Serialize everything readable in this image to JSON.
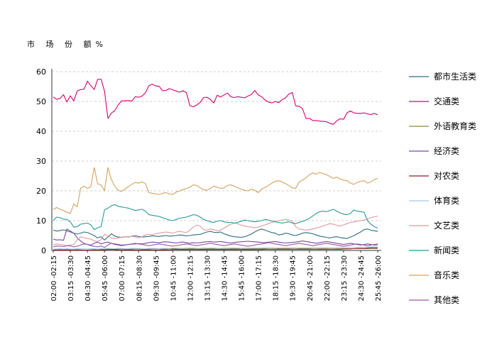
{
  "chart_data": {
    "type": "line",
    "ylabel": "市 场 份 额%",
    "ylim": [
      0,
      60
    ],
    "yticks": [
      0,
      10,
      20,
      30,
      40,
      50,
      60
    ],
    "grid": true,
    "legend_position": "right",
    "x": [
      "02:00",
      "02:15",
      "02:30",
      "02:45",
      "03:00",
      "03:15",
      "03:30",
      "03:45",
      "04:00",
      "04:15",
      "04:30",
      "04:45",
      "05:00",
      "05:15",
      "05:30",
      "05:45",
      "06:00",
      "06:15",
      "06:30",
      "06:45",
      "07:00",
      "07:15",
      "07:30",
      "07:45",
      "08:00",
      "08:15",
      "08:30",
      "08:45",
      "09:00",
      "09:15",
      "09:30",
      "09:45",
      "10:00",
      "10:15",
      "10:30",
      "10:45",
      "11:00",
      "11:15",
      "11:30",
      "11:45",
      "12:00",
      "12:15",
      "12:30",
      "12:45",
      "13:00",
      "13:15",
      "13:30",
      "13:45",
      "14:00",
      "14:15",
      "14:30",
      "14:45",
      "15:00",
      "15:15",
      "15:30",
      "15:45",
      "16:00",
      "16:15",
      "16:30",
      "16:45",
      "17:00",
      "17:15",
      "17:30",
      "17:45",
      "18:00",
      "18:15",
      "18:30",
      "18:45",
      "19:00",
      "19:15",
      "19:30",
      "19:45",
      "20:00",
      "20:15",
      "20:30",
      "20:45",
      "21:00",
      "21:15",
      "21:30",
      "21:45",
      "22:00",
      "22:15",
      "22:30",
      "22:45",
      "23:00",
      "23:15",
      "23:30",
      "23:45",
      "24:00",
      "24:15",
      "24:30",
      "24:45",
      "25:00",
      "25:15",
      "25:30",
      "25:45"
    ],
    "xtick_labels": [
      "02:00 -02:15",
      "03:15 -03:30",
      "04:30 -04:45",
      "05:45 -06:00",
      "07:00 -07:15",
      "08:15 -08:30",
      "09:30 -09:45",
      "10:45 -11:00",
      "12:00 -12:15",
      "13:15 -13:30",
      "14:30 -14:45",
      "15:45 -16:00",
      "17:00 -17:15",
      "18:15 -18:30",
      "19:30 -19:45",
      "20:45 -21:00",
      "22:00 -22:15",
      "23:15 -23:30",
      "24:30 -24:45",
      "25:45 -26:00"
    ],
    "xtick_index": [
      0,
      5,
      10,
      15,
      20,
      25,
      30,
      35,
      40,
      45,
      50,
      55,
      60,
      65,
      70,
      75,
      80,
      85,
      90,
      95
    ],
    "series": [
      {
        "name": "都市生活类",
        "color": "#2e6e84",
        "values": [
          6.8,
          6.5,
          6.7,
          6.9,
          6.6,
          6.2,
          5.8,
          5.5,
          5.8,
          6.2,
          6.0,
          5.5,
          5.0,
          4.2,
          4.6,
          3.5,
          4.5,
          5.6,
          4.8,
          4.5,
          4.4,
          4.6,
          4.5,
          4.8,
          4.9,
          4.7,
          4.5,
          4.6,
          4.7,
          4.9,
          4.8,
          4.7,
          4.9,
          5.0,
          4.8,
          4.9,
          5.0,
          5.2,
          5.1,
          4.9,
          5.0,
          5.2,
          5.3,
          5.4,
          5.8,
          6.2,
          6.4,
          6.1,
          6.0,
          6.2,
          5.6,
          5.2,
          4.8,
          4.6,
          4.5,
          4.4,
          4.6,
          5.0,
          5.5,
          6.2,
          6.8,
          7.2,
          6.8,
          6.4,
          6.0,
          5.8,
          5.2,
          5.4,
          5.8,
          5.6,
          5.2,
          5.0,
          5.4,
          5.8,
          6.0,
          5.8,
          5.6,
          5.2,
          4.8,
          4.6,
          4.4,
          4.2,
          4.5,
          4.6,
          4.3,
          4.2,
          4.0,
          4.5,
          4.9,
          5.6,
          6.2,
          7.0,
          7.2,
          6.8,
          6.6,
          6.4
        ]
      },
      {
        "name": "交通类",
        "color": "#d6006e",
        "values": [
          51.5,
          50.7,
          51.0,
          52.3,
          49.8,
          51.9,
          50.2,
          53.5,
          54.0,
          54.1,
          56.8,
          55.3,
          54.0,
          57.4,
          57.5,
          53.5,
          44.3,
          46.1,
          46.9,
          48.8,
          50.2,
          50.2,
          50.3,
          50.1,
          51.6,
          51.4,
          51.8,
          52.9,
          55.3,
          55.8,
          55.2,
          55.1,
          53.6,
          53.7,
          54.3,
          53.9,
          53.5,
          53.1,
          53.6,
          52.9,
          48.6,
          48.2,
          48.8,
          49.7,
          51.3,
          51.4,
          50.7,
          49.5,
          52.1,
          51.5,
          52.2,
          52.8,
          51.6,
          51.3,
          51.6,
          51.4,
          51.2,
          51.8,
          52.3,
          53.7,
          52.2,
          51.6,
          50.5,
          49.8,
          49.5,
          50.0,
          49.6,
          50.6,
          51.2,
          52.5,
          53.0,
          48.5,
          48.4,
          47.5,
          44.3,
          44.3,
          43.6,
          43.6,
          43.4,
          43.3,
          43.2,
          42.7,
          42.3,
          43.5,
          44.2,
          44.0,
          46.2,
          46.8,
          46.2,
          46.0,
          46.0,
          46.2,
          45.8,
          45.6,
          46.0,
          45.5
        ]
      },
      {
        "name": "外语教育类",
        "color": "#8a8a4a",
        "values": [
          0.3,
          0.3,
          0.3,
          0.4,
          0.3,
          0.4,
          0.4,
          0.4,
          0.5,
          0.5,
          0.5,
          0.5,
          0.4,
          0.4,
          0.5,
          0.5,
          0.6,
          0.5,
          0.5,
          0.5,
          0.6,
          0.5,
          0.5,
          0.5,
          0.6,
          0.6,
          0.5,
          0.5,
          0.5,
          0.6,
          0.6,
          0.6,
          0.5,
          0.5,
          0.6,
          0.6,
          0.6,
          0.5,
          0.5,
          0.5,
          0.6,
          0.6,
          0.6,
          0.5,
          0.5,
          0.6,
          0.6,
          0.6,
          0.6,
          0.5,
          0.5,
          0.5,
          0.6,
          0.6,
          0.6,
          0.6,
          0.5,
          0.5,
          0.6,
          0.6,
          0.6,
          0.6,
          0.6,
          0.5,
          0.5,
          0.5,
          0.6,
          0.6,
          0.6,
          0.6,
          0.5,
          0.5,
          0.6,
          0.6,
          0.6,
          0.6,
          0.5,
          0.5,
          0.6,
          0.6,
          0.6,
          0.5,
          0.5,
          0.6,
          0.6,
          0.6,
          0.6,
          0.5,
          0.6,
          0.6,
          0.6,
          0.6,
          0.6,
          0.6,
          0.6,
          0.6
        ]
      },
      {
        "name": "经济类",
        "color": "#7a4a9a",
        "values": [
          3.8,
          3.5,
          3.6,
          3.4,
          7.2,
          6.5,
          5.8,
          4.2,
          3.2,
          2.4,
          2.0,
          1.8,
          2.4,
          2.8,
          2.2,
          2.6,
          2.8,
          2.4,
          2.2,
          2.0,
          1.8,
          1.9,
          2.0,
          2.1,
          2.2,
          2.3,
          2.2,
          2.4,
          2.6,
          2.8,
          2.7,
          2.6,
          2.8,
          2.9,
          2.8,
          2.6,
          2.5,
          2.7,
          2.8,
          2.6,
          2.4,
          2.6,
          2.5,
          2.6,
          2.8,
          2.9,
          3.0,
          2.8,
          2.9,
          3.0,
          2.8,
          2.6,
          2.5,
          2.7,
          2.8,
          2.9,
          3.0,
          3.1,
          3.0,
          2.9,
          2.8,
          2.7,
          2.6,
          2.8,
          2.9,
          3.0,
          2.8,
          2.6,
          2.5,
          2.6,
          2.7,
          2.8,
          3.0,
          3.2,
          3.0,
          2.8,
          2.6,
          2.4,
          2.6,
          2.8,
          3.0,
          2.8,
          2.6,
          2.4,
          2.2,
          2.0,
          2.2,
          2.4,
          2.2,
          2.0,
          1.8,
          2.0,
          2.2,
          2.0,
          1.8,
          1.9
        ]
      },
      {
        "name": "对农类",
        "color": "#8c1a2a",
        "values": [
          0.1,
          0.1,
          0.1,
          0.1,
          0.1,
          0.1,
          0.1,
          0.1,
          0.1,
          0.1,
          0.1,
          0.1,
          0.1,
          0.1,
          0.2,
          0.2,
          0.3,
          0.3,
          0.3,
          0.2,
          0.2,
          0.2,
          0.2,
          0.2,
          0.2,
          0.2,
          0.2,
          0.2,
          0.2,
          0.2,
          0.2,
          0.2,
          0.2,
          0.2,
          0.2,
          0.3,
          0.3,
          0.3,
          0.3,
          0.3,
          0.3,
          0.3,
          0.3,
          0.3,
          0.3,
          0.3,
          0.3,
          0.3,
          0.3,
          0.3,
          0.3,
          0.3,
          0.3,
          0.3,
          0.3,
          0.3,
          0.3,
          0.3,
          0.3,
          0.3,
          0.3,
          0.3,
          0.4,
          0.4,
          0.4,
          0.4,
          0.4,
          0.4,
          0.4,
          0.4,
          0.4,
          0.4,
          0.4,
          0.4,
          0.4,
          0.4,
          0.4,
          0.4,
          0.4,
          0.4,
          0.4,
          0.4,
          0.4,
          0.4,
          0.4,
          0.5,
          0.5,
          0.6,
          0.6,
          0.7,
          0.7,
          0.7,
          0.8,
          0.9,
          0.9,
          0.9
        ]
      },
      {
        "name": "体育类",
        "color": "#a9c9e6",
        "values": [
          0.5,
          0.5,
          0.6,
          0.5,
          0.6,
          0.5,
          0.5,
          0.6,
          0.6,
          0.5,
          0.5,
          0.6,
          0.6,
          0.5,
          0.6,
          0.6,
          0.7,
          0.6,
          0.6,
          0.7,
          0.7,
          0.6,
          0.6,
          0.7,
          0.7,
          0.7,
          0.6,
          0.6,
          0.7,
          0.7,
          0.7,
          0.6,
          0.7,
          0.7,
          0.7,
          0.8,
          0.8,
          0.7,
          0.7,
          0.8,
          0.8,
          0.8,
          0.7,
          0.7,
          0.8,
          0.8,
          0.8,
          0.8,
          0.7,
          0.7,
          0.8,
          0.8,
          0.8,
          0.8,
          0.8,
          0.7,
          0.8,
          0.8,
          0.8,
          0.8,
          0.8,
          0.8,
          0.9,
          0.9,
          0.9,
          0.8,
          0.8,
          0.9,
          0.9,
          0.9,
          0.9,
          0.9,
          0.8,
          0.9,
          0.9,
          0.9,
          0.9,
          0.9,
          1.0,
          1.0,
          1.0,
          0.9,
          0.9,
          1.0,
          1.0,
          1.0,
          1.0,
          1.1,
          1.1,
          1.1,
          1.1,
          1.2,
          1.2,
          1.2,
          1.2,
          1.2
        ]
      },
      {
        "name": "文艺类",
        "color": "#e09a9a",
        "values": [
          1.8,
          2.2,
          2.0,
          1.8,
          1.6,
          1.8,
          2.0,
          3.5,
          4.6,
          4.3,
          4.0,
          3.8,
          3.2,
          3.0,
          3.6,
          5.4,
          4.8,
          4.2,
          4.0,
          4.2,
          4.5,
          4.6,
          4.4,
          4.8,
          4.5,
          4.2,
          4.6,
          5.2,
          5.4,
          5.2,
          5.6,
          5.8,
          6.0,
          6.2,
          6.0,
          5.8,
          6.2,
          6.4,
          6.2,
          6.0,
          6.8,
          7.8,
          8.5,
          8.2,
          7.0,
          6.8,
          7.2,
          7.0,
          6.6,
          6.8,
          7.5,
          8.2,
          8.8,
          9.2,
          9.0,
          8.5,
          8.2,
          8.0,
          7.8,
          7.6,
          7.8,
          8.2,
          8.6,
          9.0,
          9.4,
          9.8,
          10.0,
          10.2,
          10.4,
          10.2,
          9.8,
          8.0,
          7.2,
          7.0,
          6.8,
          7.0,
          7.2,
          7.5,
          7.8,
          8.2,
          8.6,
          9.0,
          8.8,
          8.4,
          8.2,
          8.6,
          9.0,
          9.4,
          9.6,
          9.8,
          10.0,
          10.2,
          10.6,
          11.0,
          11.3,
          11.5
        ]
      },
      {
        "name": "新闻类",
        "color": "#2a9a96",
        "values": [
          10.0,
          11.2,
          11.0,
          10.5,
          10.4,
          9.6,
          7.8,
          8.0,
          8.8,
          9.0,
          9.2,
          8.6,
          7.0,
          7.6,
          8.0,
          13.6,
          14.2,
          15.0,
          15.4,
          14.8,
          14.6,
          14.4,
          14.2,
          13.8,
          13.4,
          13.6,
          13.8,
          13.2,
          12.0,
          11.8,
          11.6,
          11.4,
          11.0,
          10.6,
          10.2,
          10.0,
          10.4,
          10.8,
          11.0,
          11.2,
          11.6,
          12.0,
          11.8,
          11.2,
          10.4,
          10.0,
          9.6,
          9.4,
          9.8,
          10.0,
          9.6,
          9.4,
          9.4,
          9.2,
          9.4,
          9.8,
          10.2,
          10.0,
          9.8,
          9.6,
          9.8,
          10.0,
          10.4,
          10.2,
          9.8,
          9.6,
          9.4,
          9.2,
          9.4,
          9.6,
          9.2,
          9.0,
          9.4,
          9.8,
          10.2,
          10.8,
          11.6,
          12.4,
          13.0,
          13.2,
          13.0,
          13.4,
          13.8,
          13.2,
          12.6,
          12.2,
          12.0,
          12.4,
          13.6,
          13.2,
          13.0,
          12.8,
          10.0,
          8.8,
          8.0,
          7.5
        ]
      },
      {
        "name": "音乐类",
        "color": "#d6a060",
        "values": [
          13.8,
          14.4,
          13.8,
          13.4,
          12.8,
          12.4,
          15.6,
          14.6,
          20.8,
          21.6,
          20.8,
          21.4,
          27.8,
          22.4,
          22.0,
          20.0,
          27.8,
          23.8,
          21.6,
          20.2,
          19.8,
          20.6,
          21.4,
          22.2,
          22.8,
          22.6,
          23.0,
          22.4,
          19.4,
          19.2,
          19.0,
          18.8,
          19.2,
          19.4,
          19.0,
          18.8,
          19.6,
          20.0,
          20.4,
          20.8,
          21.2,
          22.0,
          21.8,
          21.0,
          20.4,
          20.2,
          20.8,
          21.6,
          21.2,
          20.8,
          21.0,
          21.8,
          22.0,
          21.6,
          21.0,
          20.6,
          20.2,
          20.0,
          20.6,
          20.2,
          19.4,
          20.6,
          21.2,
          21.8,
          22.6,
          23.2,
          23.4,
          23.0,
          22.4,
          21.8,
          21.0,
          20.8,
          23.0,
          23.6,
          24.4,
          25.4,
          26.0,
          25.6,
          26.2,
          25.8,
          25.4,
          24.8,
          24.2,
          24.6,
          24.0,
          23.6,
          23.4,
          22.6,
          22.2,
          22.8,
          23.2,
          23.4,
          22.6,
          23.0,
          23.8,
          24.2
        ]
      },
      {
        "name": "其他类",
        "color": "#9a5aa8",
        "values": [
          1.2,
          1.5,
          1.4,
          1.3,
          1.6,
          1.5,
          1.2,
          1.4,
          1.8,
          2.2,
          2.0,
          1.6,
          1.4,
          1.2,
          1.5,
          1.0,
          1.8,
          2.4,
          2.0,
          1.8,
          1.6,
          1.8,
          2.0,
          2.2,
          2.4,
          2.2,
          2.0,
          1.8,
          1.6,
          1.8,
          2.0,
          2.2,
          2.0,
          1.8,
          1.6,
          1.5,
          1.6,
          1.8,
          2.0,
          2.2,
          2.0,
          1.8,
          1.6,
          1.8,
          2.0,
          2.2,
          2.4,
          2.2,
          2.0,
          1.8,
          1.6,
          1.8,
          2.0,
          2.2,
          2.0,
          1.8,
          1.6,
          1.4,
          1.6,
          1.8,
          2.0,
          2.2,
          2.4,
          2.6,
          2.4,
          2.2,
          2.0,
          1.8,
          1.6,
          1.8,
          2.0,
          2.2,
          2.4,
          2.2,
          2.0,
          1.8,
          1.6,
          1.8,
          2.0,
          2.2,
          2.4,
          2.2,
          2.0,
          1.8,
          1.6,
          1.4,
          1.6,
          1.8,
          2.0,
          2.2,
          2.0,
          1.8,
          1.6,
          1.8,
          2.0,
          2.2
        ]
      }
    ]
  }
}
